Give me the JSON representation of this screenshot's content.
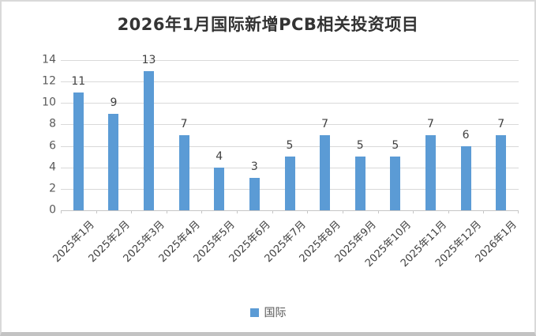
{
  "chart_data": {
    "type": "bar",
    "title": "2026年1月国际新增PCB相关投资项目",
    "categories": [
      "2025年1月",
      "2025年2月",
      "2025年3月",
      "2025年4月",
      "2025年5月",
      "2025年6月",
      "2025年7月",
      "2025年8月",
      "2025年9月",
      "2025年10月",
      "2025年11月",
      "2025年12月",
      "2026年1月"
    ],
    "series": [
      {
        "name": "国际",
        "values": [
          11,
          9,
          13,
          7,
          4,
          3,
          5,
          7,
          5,
          5,
          7,
          6,
          7
        ]
      }
    ],
    "xlabel": "",
    "ylabel": "",
    "ylim": [
      0,
      14
    ],
    "yticks": [
      0,
      2,
      4,
      6,
      8,
      10,
      12,
      14
    ],
    "grid": true,
    "data_labels": true,
    "legend_position": "bottom",
    "x_label_rotation_deg": -45
  },
  "legend": {
    "items": [
      {
        "label": "国际",
        "color": "#5B9BD5"
      }
    ]
  },
  "colors": {
    "bar": "#5B9BD5",
    "gridline": "#D9D9D9",
    "axis_line": "#C6C6C6",
    "tick_label": "#595959",
    "data_label": "#404040",
    "title": "#333333",
    "frame_border": "#D9D9D9",
    "frame_bottom_border": "#C3C3C3",
    "background": "#FFFFFF"
  }
}
